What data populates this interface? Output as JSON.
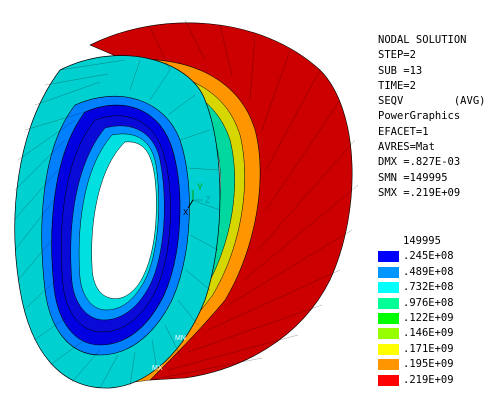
{
  "info": {
    "lines": [
      "NODAL SOLUTION",
      "STEP=2",
      "SUB =13",
      "TIME=2",
      "SEQV        (AVG)",
      "PowerGraphics",
      "EFACET=1",
      "AVRES=Mat",
      "DMX =.827E-03",
      "SMN =149995",
      "SMX =.219E+09"
    ]
  },
  "legend": {
    "min_label": "149995",
    "entries": [
      {
        "label": ".245E+08",
        "color": "#0000ff"
      },
      {
        "label": ".489E+08",
        "color": "#0096ff"
      },
      {
        "label": ".732E+08",
        "color": "#00ffff"
      },
      {
        "label": ".976E+08",
        "color": "#00ff96"
      },
      {
        "label": ".122E+09",
        "color": "#00ff00"
      },
      {
        "label": ".146E+09",
        "color": "#96ff00"
      },
      {
        "label": ".171E+09",
        "color": "#ffff00"
      },
      {
        "label": ".195E+09",
        "color": "#ff9600"
      },
      {
        "label": ".219E+09",
        "color": "#ff0000"
      }
    ]
  },
  "triad": {
    "y_label": "Y",
    "z_label": "Z",
    "x_label": "X"
  },
  "markers": {
    "mn_label": "MN",
    "mx_label": "MX"
  }
}
